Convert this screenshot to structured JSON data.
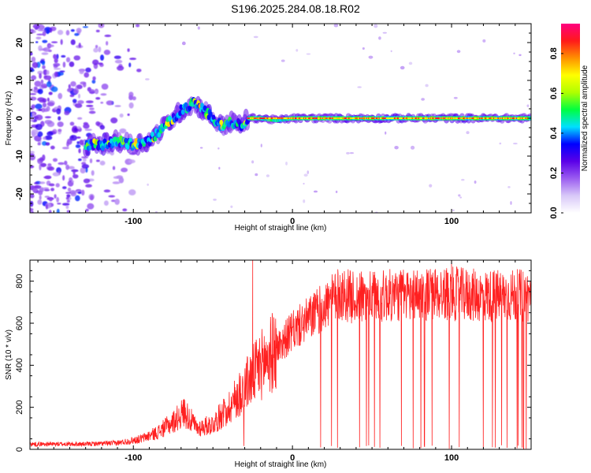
{
  "title": "S196.2025.284.08.18.R02",
  "chart_data": [
    {
      "type": "heatmap",
      "name": "spectrogram",
      "xlabel": "Height of straight line (km)",
      "ylabel": "Frequency (Hz)",
      "xlim": [
        -165,
        150
      ],
      "ylim": [
        -25,
        25
      ],
      "xticks": [
        -100,
        0,
        100
      ],
      "xtick_labels": [
        "-100",
        "0",
        "100"
      ],
      "yticks": [
        -20,
        -10,
        0,
        10,
        20
      ],
      "ytick_labels": [
        "-20",
        "-10",
        "0",
        "10",
        "20"
      ],
      "colorbar": {
        "label": "Normalized spectral amplitude",
        "range": [
          0.0,
          0.95
        ],
        "ticks": [
          0.0,
          0.2,
          0.4,
          0.6,
          0.8
        ],
        "tick_labels": [
          "0.0",
          "0.2",
          "0.4",
          "0.6",
          "0.8"
        ],
        "colormap": [
          "#ffffff",
          "#d8c8f8",
          "#9b5cf0",
          "#5a00e8",
          "#0000ff",
          "#00e0ff",
          "#00ff40",
          "#b0ff00",
          "#ffff00",
          "#ff9000",
          "#ff1a1a",
          "#ff0080"
        ]
      },
      "ridge": {
        "x": [
          -130,
          -120,
          -110,
          -100,
          -90,
          -80,
          -75,
          -70,
          -62,
          -55,
          -45,
          -38,
          -32,
          -28,
          -20,
          -10,
          0,
          20,
          50,
          100,
          150
        ],
        "y": [
          -7,
          -7,
          -6,
          -7,
          -6,
          -2,
          0,
          2,
          4,
          2,
          -2,
          -1,
          -2,
          0,
          0,
          -0.5,
          0,
          0,
          0,
          0,
          0
        ]
      }
    },
    {
      "type": "line",
      "name": "snr",
      "xlabel": "Height of straight line (km)",
      "ylabel": "SNR (10 * v/v)",
      "xlim": [
        -165,
        150
      ],
      "ylim": [
        0,
        900
      ],
      "xticks": [
        -100,
        0,
        100
      ],
      "xtick_labels": [
        "-100",
        "0",
        "100"
      ],
      "yticks": [
        0,
        200,
        400,
        600,
        800
      ],
      "ytick_labels": [
        "0",
        "200",
        "400",
        "600",
        "800"
      ],
      "series": [
        {
          "name": "SNR",
          "color": "#ff2020",
          "envelope_x": [
            -165,
            -130,
            -110,
            -95,
            -85,
            -75,
            -68,
            -60,
            -50,
            -40,
            -30,
            -25,
            -20,
            -10,
            0,
            10,
            20,
            30,
            40,
            60,
            80,
            100,
            120,
            150
          ],
          "envelope_y": [
            25,
            25,
            30,
            50,
            80,
            130,
            180,
            100,
            120,
            200,
            300,
            350,
            400,
            480,
            560,
            620,
            680,
            740,
            720,
            730,
            740,
            740,
            730,
            730
          ],
          "spikes_x": [
            -25,
            100
          ],
          "spikes_y": [
            900,
            900
          ]
        }
      ]
    }
  ]
}
